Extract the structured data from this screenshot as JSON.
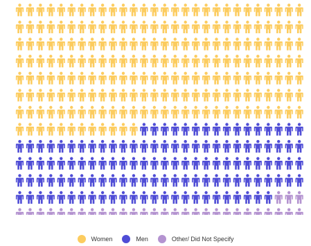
{
  "chart_data": {
    "type": "pictogram",
    "icon": "person-icon",
    "total_icons": 364,
    "rows": 13,
    "columns": 28,
    "fill_order": "row-major-top-left",
    "series": [
      {
        "name": "Women",
        "count": 208,
        "color": "#fccc5f"
      },
      {
        "name": "Men",
        "count": 125,
        "color": "#4f4dd6"
      },
      {
        "name": "Other/ Did Not Specify",
        "count": 31,
        "color": "#b493d0"
      }
    ],
    "legend_position": "bottom-center",
    "title": "",
    "xlabel": "",
    "ylabel": ""
  },
  "legend": {
    "items": [
      {
        "label": "Women",
        "color": "#fccc5f"
      },
      {
        "label": "Men",
        "color": "#4f4dd6"
      },
      {
        "label": "Other/ Did Not Specify",
        "color": "#b493d0"
      }
    ]
  }
}
